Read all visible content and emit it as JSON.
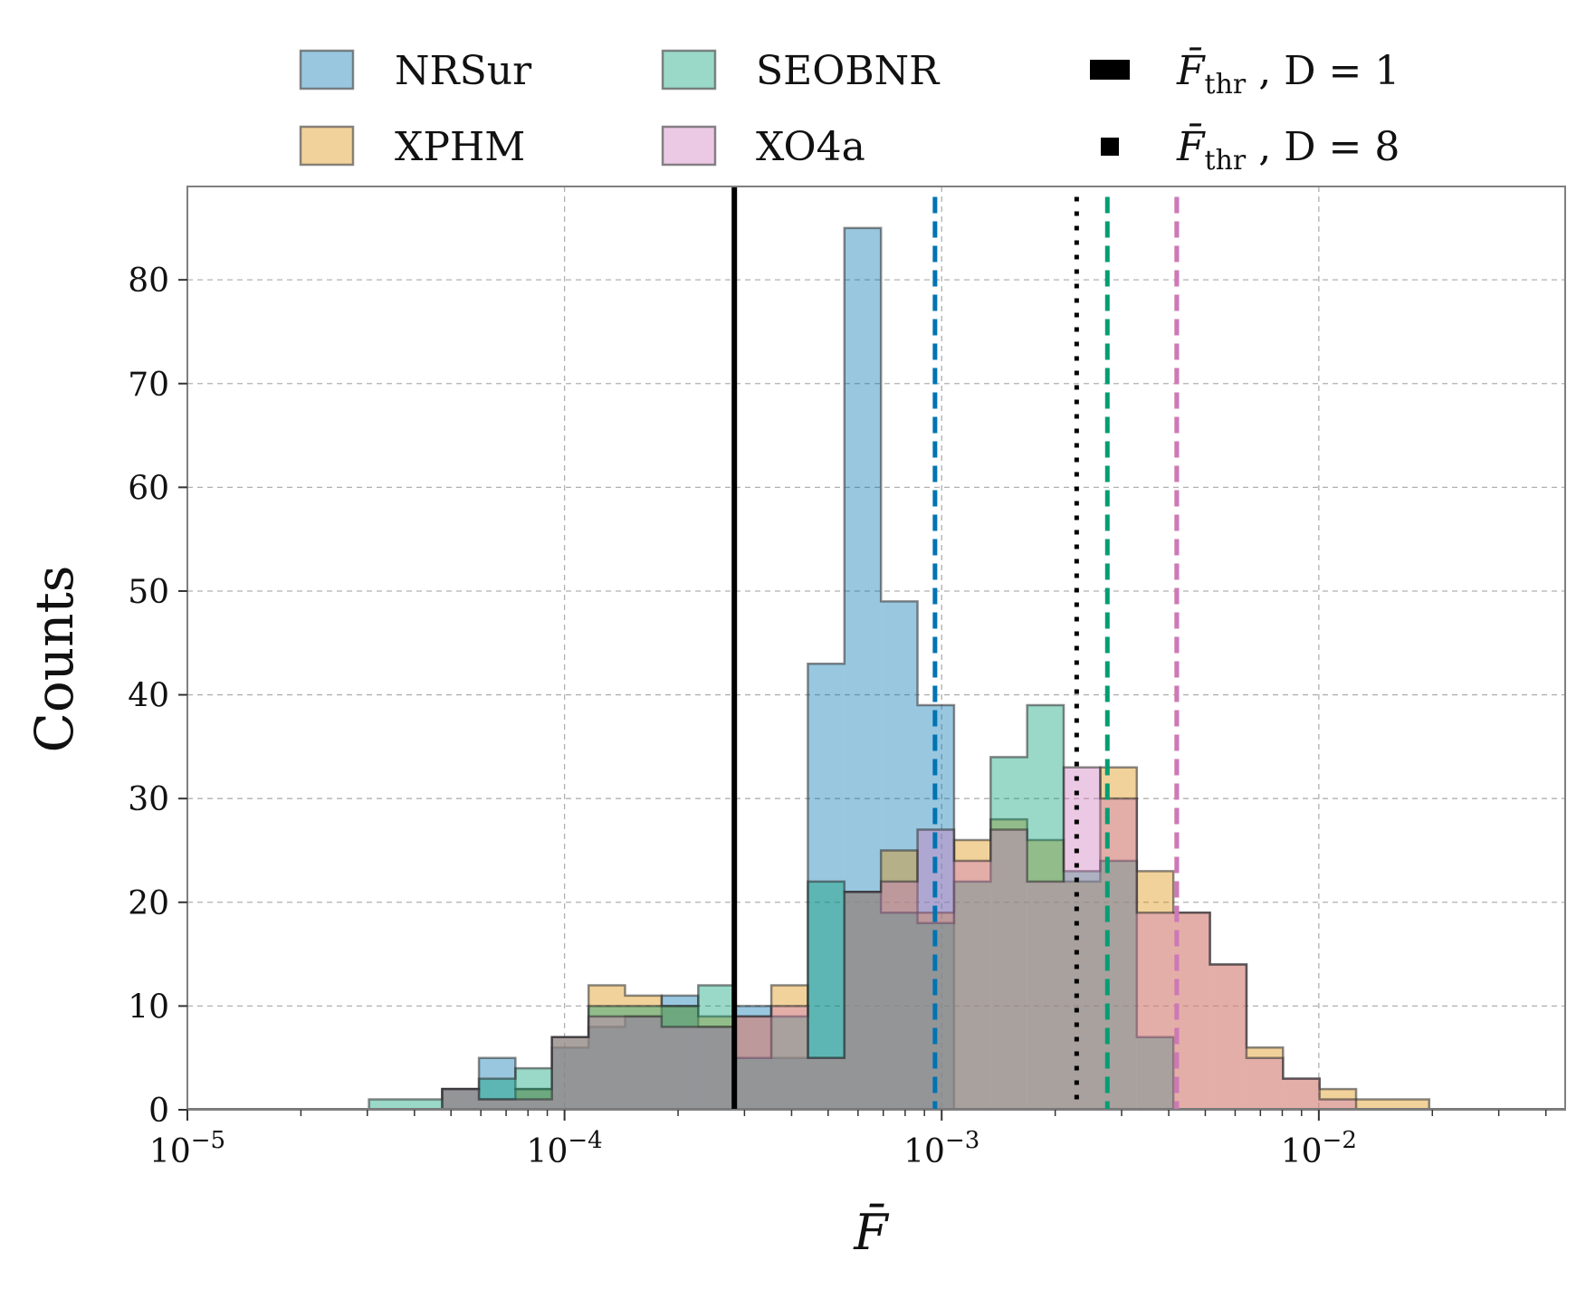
{
  "chart_data": {
    "type": "histogram",
    "xscale": "log",
    "xlim": [
      1e-05,
      0.045
    ],
    "ylim": [
      0,
      89
    ],
    "xlabel": "F̄",
    "ylabel": "Counts",
    "xticks": [
      {
        "value": 1e-05,
        "base": "10",
        "exp": "−5"
      },
      {
        "value": 0.0001,
        "base": "10",
        "exp": "−4"
      },
      {
        "value": 0.001,
        "base": "10",
        "exp": "−3"
      },
      {
        "value": 0.01,
        "base": "10",
        "exp": "−2"
      }
    ],
    "yticks": [
      0,
      10,
      20,
      30,
      40,
      50,
      60,
      70,
      80
    ],
    "grid": true,
    "bin_edges": [
      3.03e-05,
      3.79e-05,
      4.74e-05,
      5.93e-05,
      7.41e-05,
      9.26e-05,
      0.0001158,
      0.0001447,
      0.0001809,
      0.0002262,
      0.0002827,
      0.0003534,
      0.0004418,
      0.0005522,
      0.0006903,
      0.0008629,
      0.0010786,
      0.0013483,
      0.0016853,
      0.0021067,
      0.0026334,
      0.0032917,
      0.0041147,
      0.0051433,
      0.0064292,
      0.0080365,
      0.0100456,
      0.012557,
      0.0156963,
      0.0196203
    ],
    "series": [
      {
        "name": "NRSur",
        "color": "#0173b2",
        "fill_opacity": 0.4,
        "threshold": 0.00096,
        "values": [
          0,
          0,
          2,
          5,
          2,
          6,
          8,
          9,
          11,
          8,
          10,
          5,
          43,
          85,
          49,
          39,
          0,
          0,
          0,
          0,
          0,
          0,
          0,
          0,
          0,
          0,
          0,
          0,
          0
        ]
      },
      {
        "name": "XPHM",
        "color": "#de8f05",
        "fill_opacity": 0.4,
        "threshold": 0.0042,
        "values": [
          0,
          0,
          2,
          1,
          2,
          7,
          12,
          11,
          10,
          9,
          9,
          12,
          5,
          21,
          25,
          19,
          26,
          28,
          26,
          22,
          33,
          23,
          19,
          14,
          6,
          3,
          2,
          1,
          1
        ]
      },
      {
        "name": "SEOBNR",
        "color": "#029e73",
        "fill_opacity": 0.4,
        "threshold": 0.00275,
        "values": [
          1,
          1,
          2,
          3,
          4,
          7,
          10,
          10,
          10,
          12,
          5,
          9,
          22,
          21,
          19,
          18,
          22,
          34,
          39,
          23,
          24,
          7,
          0,
          0,
          0,
          0,
          0,
          0,
          0
        ]
      },
      {
        "name": "XO4a",
        "color": "#cc78bc",
        "fill_opacity": 0.4,
        "threshold": 0.0042,
        "values": [
          0,
          0,
          2,
          1,
          1,
          7,
          9,
          9,
          8,
          8,
          9,
          10,
          5,
          21,
          22,
          27,
          24,
          27,
          22,
          33,
          30,
          19,
          19,
          14,
          5,
          3,
          1,
          0,
          0
        ]
      }
    ],
    "reference_lines": [
      {
        "value": 0.000282,
        "style": "solid",
        "color": "#000000",
        "label_main": "F̄",
        "label_sub": "thr",
        "label_rest": " , D = 1"
      },
      {
        "value": 0.00228,
        "style": "dotted",
        "color": "#000000",
        "label_main": "F̄",
        "label_sub": "thr",
        "label_rest": " , D = 8"
      }
    ],
    "legend_position": "top-center"
  }
}
